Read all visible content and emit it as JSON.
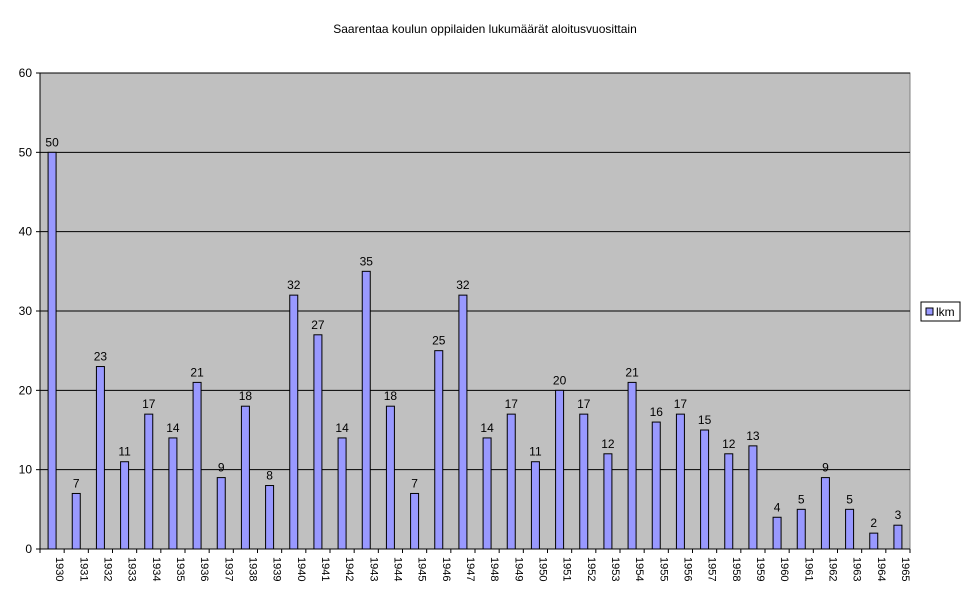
{
  "chart_data": {
    "type": "bar",
    "title": "Saarentaa koulun oppilaiden lukumäärät aloitusvuosittain",
    "xlabel": "",
    "ylabel": "",
    "ylim": [
      0,
      60
    ],
    "yticks": [
      0,
      10,
      20,
      30,
      40,
      50,
      60
    ],
    "grid": true,
    "legend_position": "right",
    "categories": [
      "1930",
      "1931",
      "1932",
      "1933",
      "1934",
      "1935",
      "1936",
      "1937",
      "1938",
      "1939",
      "1940",
      "1941",
      "1942",
      "1943",
      "1944",
      "1945",
      "1946",
      "1947",
      "1948",
      "1949",
      "1950",
      "1951",
      "1952",
      "1953",
      "1954",
      "1955",
      "1956",
      "1957",
      "1958",
      "1959",
      "1960",
      "1961",
      "1962",
      "1963",
      "1964",
      "1965"
    ],
    "series": [
      {
        "name": "lkm",
        "values": [
          50,
          7,
          23,
          11,
          17,
          14,
          21,
          9,
          18,
          8,
          32,
          27,
          14,
          35,
          18,
          7,
          25,
          32,
          14,
          17,
          11,
          20,
          17,
          12,
          21,
          16,
          17,
          15,
          12,
          13,
          4,
          5,
          9,
          5,
          2,
          3
        ]
      }
    ],
    "colors": {
      "bar_fill": "#9999ff",
      "bar_stroke": "#000000",
      "plot_background": "#c0c0c0",
      "gridline": "#000000"
    }
  }
}
